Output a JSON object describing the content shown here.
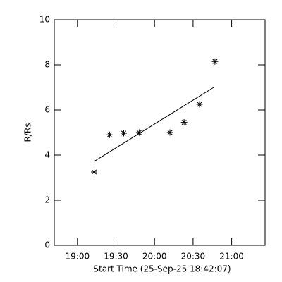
{
  "chart_data": {
    "type": "scatter",
    "xlabel": "Start Time (25-Sep-25 18:42:07)",
    "ylabel": "R/Rs",
    "x": [
      "19:13",
      "19:25",
      "19:36",
      "19:48",
      "20:12",
      "20:23",
      "20:35",
      "20:47"
    ],
    "values": [
      3.25,
      4.9,
      4.97,
      5.0,
      5.0,
      5.45,
      6.25,
      8.15
    ],
    "color": "#000000",
    "fit": {
      "x": [
        "19:13",
        "20:46"
      ],
      "values": [
        3.72,
        7.0
      ]
    },
    "xlim": [
      "18:42",
      "21:26"
    ],
    "xticks": [
      "19:00",
      "19:30",
      "20:00",
      "20:30",
      "21:00"
    ],
    "ylim": [
      0,
      10
    ],
    "yticks": [
      0,
      2,
      4,
      6,
      8,
      10
    ]
  }
}
